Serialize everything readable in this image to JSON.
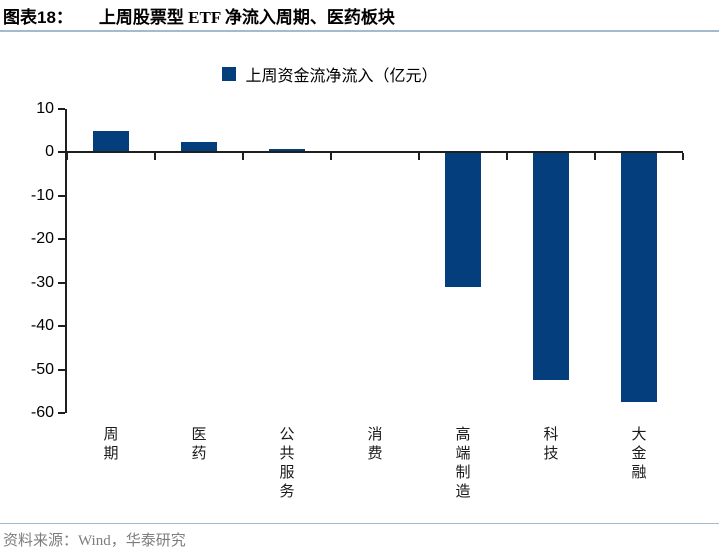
{
  "header": {
    "figure_label": "图表18：",
    "title": "上周股票型 ETF 净流入周期、医药板块"
  },
  "legend": {
    "label": "上周资金流净流入（亿元）"
  },
  "chart_data": {
    "type": "bar",
    "categories": [
      "周期",
      "医药",
      "公共服务",
      "消费",
      "高端制造",
      "科技",
      "大金融"
    ],
    "values": [
      5,
      2.5,
      0.8,
      0,
      -31,
      -52.5,
      -57.5
    ],
    "series": [
      {
        "name": "上周资金流净流入（亿元）",
        "values": [
          5,
          2.5,
          0.8,
          0,
          -31,
          -52.5,
          -57.5
        ]
      }
    ],
    "title": "上周股票型 ETF 净流入周期、医药板块",
    "xlabel": "",
    "ylabel": "",
    "ylim": [
      -60,
      10
    ],
    "ytick_step": 10,
    "yticks": [
      10,
      0,
      -10,
      -20,
      -30,
      -40,
      -50,
      -60
    ],
    "grid": false,
    "legend_position": "top-center",
    "bar_color": "#043e7c",
    "axis_color": "#1f1f1f",
    "category_label_orientation": "vertical"
  },
  "footer": {
    "source": "资料来源：Wind，华泰研究"
  },
  "colors": {
    "bar": "#043e7c",
    "axis": "#1f1f1f",
    "divider": "#a4bbcd",
    "source_text": "#7d7d7d"
  }
}
